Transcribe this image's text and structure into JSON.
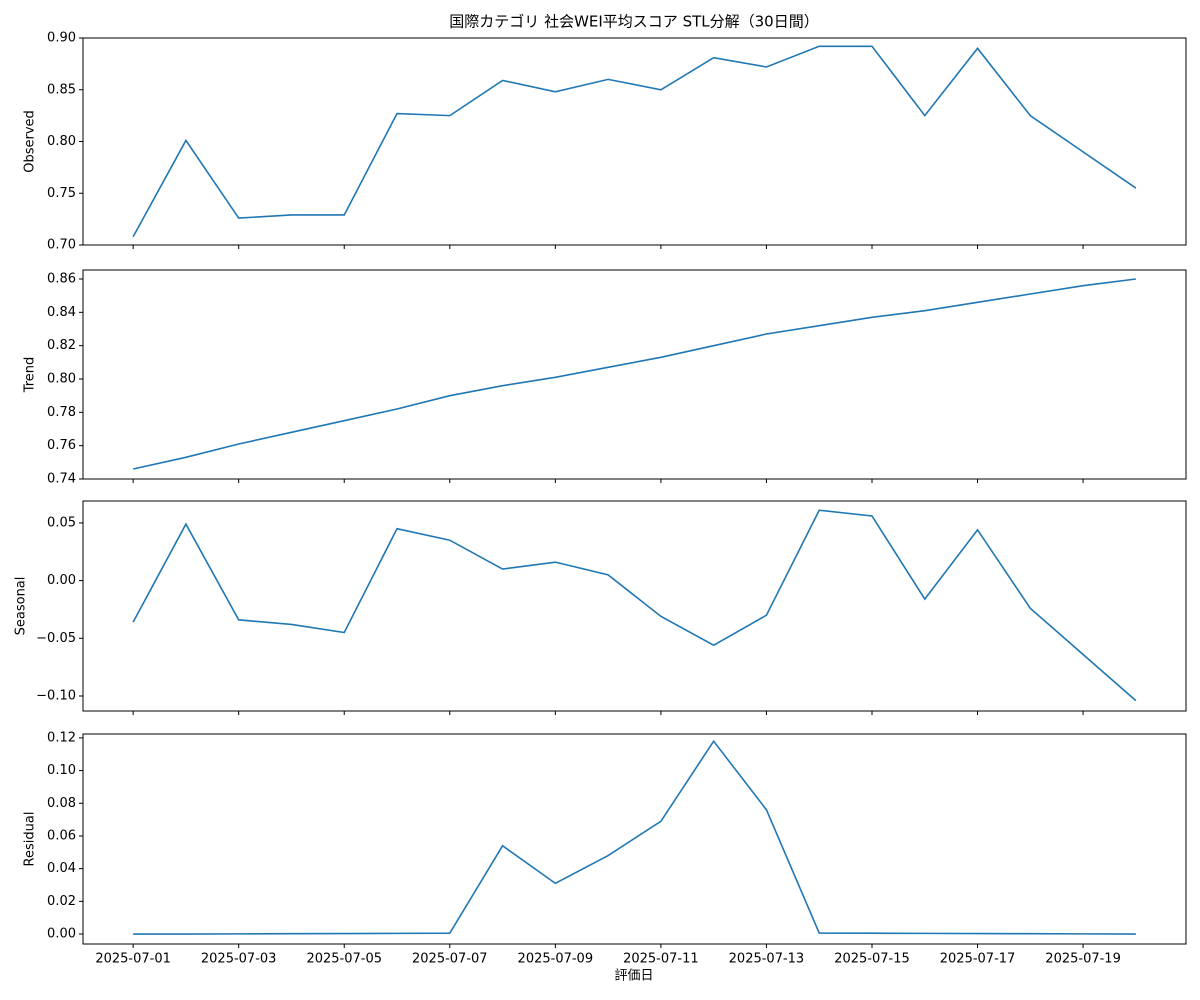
{
  "chart_data": [
    {
      "type": "line",
      "title": "国際カテゴリ 社会WEI平均スコア STL分解（30日間）",
      "ylabel": "Observed",
      "color": "#1f77b4",
      "x": [
        "2025-07-01",
        "2025-07-02",
        "2025-07-03",
        "2025-07-04",
        "2025-07-05",
        "2025-07-06",
        "2025-07-07",
        "2025-07-08",
        "2025-07-09",
        "2025-07-10",
        "2025-07-11",
        "2025-07-12",
        "2025-07-13",
        "2025-07-14",
        "2025-07-15",
        "2025-07-16",
        "2025-07-17",
        "2025-07-18",
        "2025-07-19",
        "2025-07-20"
      ],
      "values": [
        0.708,
        0.801,
        0.726,
        0.729,
        0.729,
        0.827,
        0.825,
        0.859,
        0.848,
        0.86,
        0.85,
        0.881,
        0.872,
        0.892,
        0.892,
        0.825,
        0.89,
        0.825,
        0.79,
        0.755
      ],
      "xlim": [
        "2025-06-30T01:12",
        "2025-07-20T22:48"
      ],
      "xticks": [
        "2025-07-01",
        "2025-07-03",
        "2025-07-05",
        "2025-07-07",
        "2025-07-09",
        "2025-07-11",
        "2025-07-13",
        "2025-07-15",
        "2025-07-17",
        "2025-07-19"
      ],
      "ylim": [
        0.7,
        0.9
      ],
      "yticks": [
        {
          "value": 0.7,
          "label": "0.70"
        },
        {
          "value": 0.75,
          "label": "0.75"
        },
        {
          "value": 0.8,
          "label": "0.80"
        },
        {
          "value": 0.85,
          "label": "0.85"
        },
        {
          "value": 0.9,
          "label": "0.90"
        }
      ]
    },
    {
      "type": "line",
      "ylabel": "Trend",
      "color": "#1f77b4",
      "x": [
        "2025-07-01",
        "2025-07-02",
        "2025-07-03",
        "2025-07-04",
        "2025-07-05",
        "2025-07-06",
        "2025-07-07",
        "2025-07-08",
        "2025-07-09",
        "2025-07-10",
        "2025-07-11",
        "2025-07-12",
        "2025-07-13",
        "2025-07-14",
        "2025-07-15",
        "2025-07-16",
        "2025-07-17",
        "2025-07-18",
        "2025-07-19",
        "2025-07-20"
      ],
      "values": [
        0.746,
        0.753,
        0.761,
        0.768,
        0.775,
        0.782,
        0.79,
        0.796,
        0.801,
        0.807,
        0.813,
        0.82,
        0.827,
        0.832,
        0.837,
        0.841,
        0.846,
        0.851,
        0.856,
        0.86
      ],
      "xlim": [
        "2025-06-30T01:12",
        "2025-07-20T22:48"
      ],
      "xticks": [
        "2025-07-01",
        "2025-07-03",
        "2025-07-05",
        "2025-07-07",
        "2025-07-09",
        "2025-07-11",
        "2025-07-13",
        "2025-07-15",
        "2025-07-17",
        "2025-07-19"
      ],
      "ylim": [
        0.74,
        0.8654
      ],
      "yticks": [
        {
          "value": 0.74,
          "label": "0.74"
        },
        {
          "value": 0.76,
          "label": "0.76"
        },
        {
          "value": 0.78,
          "label": "0.78"
        },
        {
          "value": 0.8,
          "label": "0.80"
        },
        {
          "value": 0.82,
          "label": "0.82"
        },
        {
          "value": 0.84,
          "label": "0.84"
        },
        {
          "value": 0.86,
          "label": "0.86"
        }
      ]
    },
    {
      "type": "line",
      "ylabel": "Seasonal",
      "color": "#1f77b4",
      "x": [
        "2025-07-01",
        "2025-07-02",
        "2025-07-03",
        "2025-07-04",
        "2025-07-05",
        "2025-07-06",
        "2025-07-07",
        "2025-07-08",
        "2025-07-09",
        "2025-07-10",
        "2025-07-11",
        "2025-07-12",
        "2025-07-13",
        "2025-07-14",
        "2025-07-15",
        "2025-07-16",
        "2025-07-17",
        "2025-07-18",
        "2025-07-19",
        "2025-07-20"
      ],
      "values": [
        -0.036,
        0.049,
        -0.034,
        -0.038,
        -0.045,
        0.045,
        0.035,
        0.01,
        0.016,
        0.005,
        -0.031,
        -0.056,
        -0.03,
        0.061,
        0.056,
        -0.016,
        0.044,
        -0.024,
        -0.064,
        -0.104
      ],
      "xlim": [
        "2025-06-30T01:12",
        "2025-07-20T22:48"
      ],
      "xticks": [
        "2025-07-01",
        "2025-07-03",
        "2025-07-05",
        "2025-07-07",
        "2025-07-09",
        "2025-07-11",
        "2025-07-13",
        "2025-07-15",
        "2025-07-17",
        "2025-07-19"
      ],
      "ylim": [
        -0.113,
        0.069
      ],
      "yticks": [
        {
          "value": -0.1,
          "label": "−0.10"
        },
        {
          "value": -0.05,
          "label": "−0.05"
        },
        {
          "value": 0.0,
          "label": "0.00"
        },
        {
          "value": 0.05,
          "label": "0.05"
        }
      ]
    },
    {
      "type": "line",
      "ylabel": "Residual",
      "xlabel": "評価日",
      "color": "#1f77b4",
      "x": [
        "2025-07-01",
        "2025-07-02",
        "2025-07-03",
        "2025-07-04",
        "2025-07-05",
        "2025-07-06",
        "2025-07-07",
        "2025-07-08",
        "2025-07-09",
        "2025-07-10",
        "2025-07-11",
        "2025-07-12",
        "2025-07-13",
        "2025-07-14",
        "2025-07-15",
        "2025-07-16",
        "2025-07-17",
        "2025-07-18",
        "2025-07-19",
        "2025-07-20"
      ],
      "values": [
        0.0,
        0.0,
        0.0001,
        0.0002,
        0.0003,
        0.0004,
        0.0005,
        0.054,
        0.031,
        0.048,
        0.069,
        0.118,
        0.076,
        0.0006,
        0.0005,
        0.0004,
        0.0003,
        0.0002,
        0.0001,
        0.0
      ],
      "xlim": [
        "2025-06-30T01:12",
        "2025-07-20T22:48"
      ],
      "xticks": [
        "2025-07-01",
        "2025-07-03",
        "2025-07-05",
        "2025-07-07",
        "2025-07-09",
        "2025-07-11",
        "2025-07-13",
        "2025-07-15",
        "2025-07-17",
        "2025-07-19"
      ],
      "ylim": [
        -0.0061,
        0.1224
      ],
      "yticks": [
        {
          "value": 0.0,
          "label": "0.00"
        },
        {
          "value": 0.02,
          "label": "0.02"
        },
        {
          "value": 0.04,
          "label": "0.04"
        },
        {
          "value": 0.06,
          "label": "0.06"
        },
        {
          "value": 0.08,
          "label": "0.08"
        },
        {
          "value": 0.1,
          "label": "0.10"
        },
        {
          "value": 0.12,
          "label": "0.12"
        }
      ]
    }
  ]
}
